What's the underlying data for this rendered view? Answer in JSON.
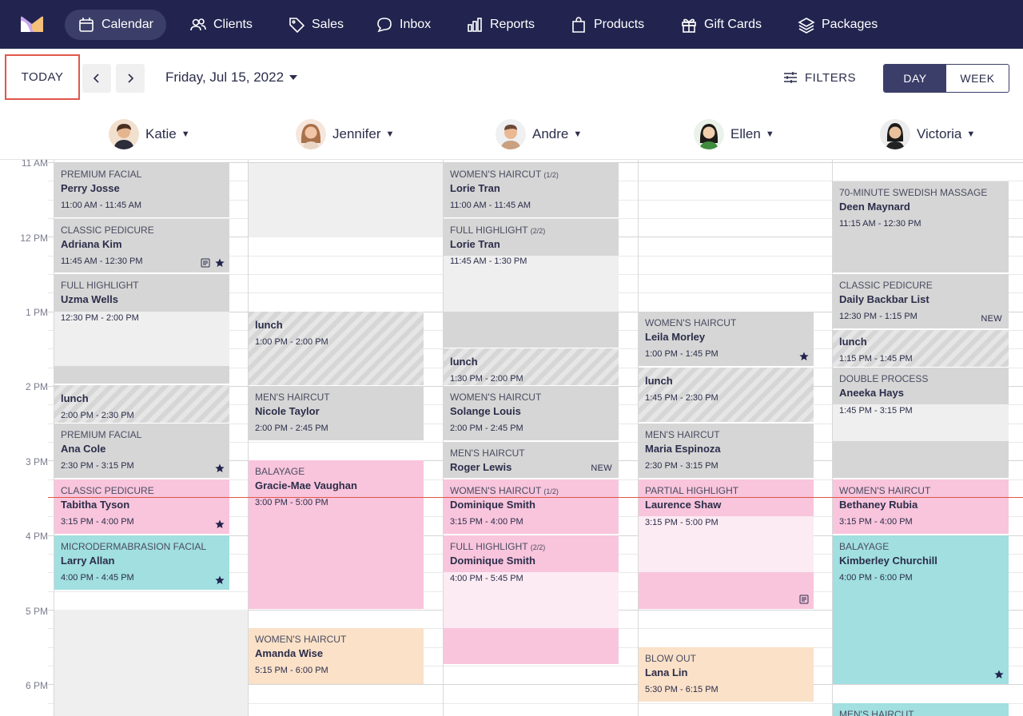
{
  "nav": {
    "items": [
      {
        "label": "Calendar",
        "icon": "calendar-icon",
        "active": true
      },
      {
        "label": "Clients",
        "icon": "users-icon"
      },
      {
        "label": "Sales",
        "icon": "tag-icon"
      },
      {
        "label": "Inbox",
        "icon": "chat-icon"
      },
      {
        "label": "Reports",
        "icon": "bar-chart-icon"
      },
      {
        "label": "Products",
        "icon": "shopping-bag-icon"
      },
      {
        "label": "Gift Cards",
        "icon": "gift-icon"
      },
      {
        "label": "Packages",
        "icon": "layers-icon"
      }
    ]
  },
  "toolbar": {
    "today_label": "TODAY",
    "date_label": "Friday, Jul 15, 2022",
    "filters_label": "FILTERS",
    "day_label": "DAY",
    "week_label": "WEEK"
  },
  "staff": [
    {
      "name": "Katie"
    },
    {
      "name": "Jennifer"
    },
    {
      "name": "Andre"
    },
    {
      "name": "Ellen"
    },
    {
      "name": "Victoria"
    }
  ],
  "times": [
    "11 AM",
    "12 PM",
    "1 PM",
    "2 PM",
    "3 PM",
    "4 PM",
    "5 PM",
    "6 PM"
  ],
  "appointments": {
    "katie": [
      {
        "service": "PREMIUM FACIAL",
        "client": "Perry Josse",
        "time": "11:00 AM - 11:45 AM"
      },
      {
        "service": "CLASSIC PEDICURE",
        "client": "Adriana Kim",
        "time": "11:45 AM - 12:30 PM"
      },
      {
        "service": "FULL HIGHLIGHT",
        "client": "Uzma Wells",
        "time": "12:30 PM - 2:00 PM"
      },
      {
        "service": "",
        "client": "lunch",
        "time": "2:00 PM - 2:30 PM"
      },
      {
        "service": "PREMIUM FACIAL",
        "client": "Ana Cole",
        "time": "2:30 PM - 3:15 PM"
      },
      {
        "service": "CLASSIC PEDICURE",
        "client": "Tabitha Tyson",
        "time": "3:15 PM - 4:00 PM"
      },
      {
        "service": "MICRODERMABRASION FACIAL",
        "client": "Larry Allan",
        "time": "4:00 PM - 4:45 PM"
      }
    ],
    "jennifer": [
      {
        "service": "",
        "client": "lunch",
        "time": "1:00 PM - 2:00 PM"
      },
      {
        "service": "MEN'S HAIRCUT",
        "client": "Nicole Taylor",
        "time": "2:00 PM - 2:45 PM"
      },
      {
        "service": "BALAYAGE",
        "client": "Gracie-Mae Vaughan",
        "time": "3:00 PM - 5:00 PM"
      },
      {
        "service": "WOMEN'S HAIRCUT",
        "client": "Amanda Wise",
        "time": "5:15 PM - 6:00 PM"
      }
    ],
    "andre": [
      {
        "service": "WOMEN'S HAIRCUT",
        "part": "(1/2)",
        "client": "Lorie Tran",
        "time": "11:00 AM - 11:45 AM"
      },
      {
        "service": "FULL HIGHLIGHT",
        "part": "(2/2)",
        "client": "Lorie Tran",
        "time": "11:45 AM - 1:30 PM"
      },
      {
        "service": "",
        "client": "lunch",
        "time": "1:30 PM - 2:00 PM"
      },
      {
        "service": "WOMEN'S HAIRCUT",
        "client": "Solange Louis",
        "time": "2:00 PM - 2:45 PM"
      },
      {
        "service": "MEN'S HAIRCUT",
        "client": "Roger Lewis",
        "time": "",
        "badge": "NEW"
      },
      {
        "service": "WOMEN'S HAIRCUT",
        "part": "(1/2)",
        "client": "Dominique Smith",
        "time": "3:15 PM - 4:00 PM"
      },
      {
        "service": "FULL HIGHLIGHT",
        "part": "(2/2)",
        "client": "Dominique Smith",
        "time": "4:00 PM - 5:45 PM"
      }
    ],
    "ellen": [
      {
        "service": "WOMEN'S HAIRCUT",
        "client": "Leila Morley",
        "time": "1:00 PM - 1:45 PM"
      },
      {
        "service": "",
        "client": "lunch",
        "time": "1:45 PM - 2:30 PM"
      },
      {
        "service": "MEN'S HAIRCUT",
        "client": "Maria Espinoza",
        "time": "2:30 PM - 3:15 PM"
      },
      {
        "service": "PARTIAL HIGHLIGHT",
        "client": "Laurence Shaw",
        "time": "3:15 PM - 5:00 PM"
      },
      {
        "service": "BLOW OUT",
        "client": "Lana Lin",
        "time": "5:30 PM - 6:15 PM"
      }
    ],
    "victoria": [
      {
        "service": "70-MINUTE SWEDISH MASSAGE",
        "client": "Deen Maynard",
        "time": "11:15 AM - 12:30 PM"
      },
      {
        "service": "CLASSIC PEDICURE",
        "client": "Daily Backbar List",
        "time": "12:30 PM - 1:15 PM",
        "badge": "NEW"
      },
      {
        "service": "",
        "client": "lunch",
        "time": "1:15 PM - 1:45 PM"
      },
      {
        "service": "DOUBLE PROCESS",
        "client": "Aneeka Hays",
        "time": "1:45 PM - 3:15 PM"
      },
      {
        "service": "WOMEN'S HAIRCUT",
        "client": "Bethaney Rubia",
        "time": "3:15 PM - 4:00 PM"
      },
      {
        "service": "BALAYAGE",
        "client": "Kimberley Churchill",
        "time": "4:00 PM - 6:00 PM"
      },
      {
        "service": "MEN'S HAIRCUT",
        "client": "",
        "time": ""
      }
    ]
  }
}
